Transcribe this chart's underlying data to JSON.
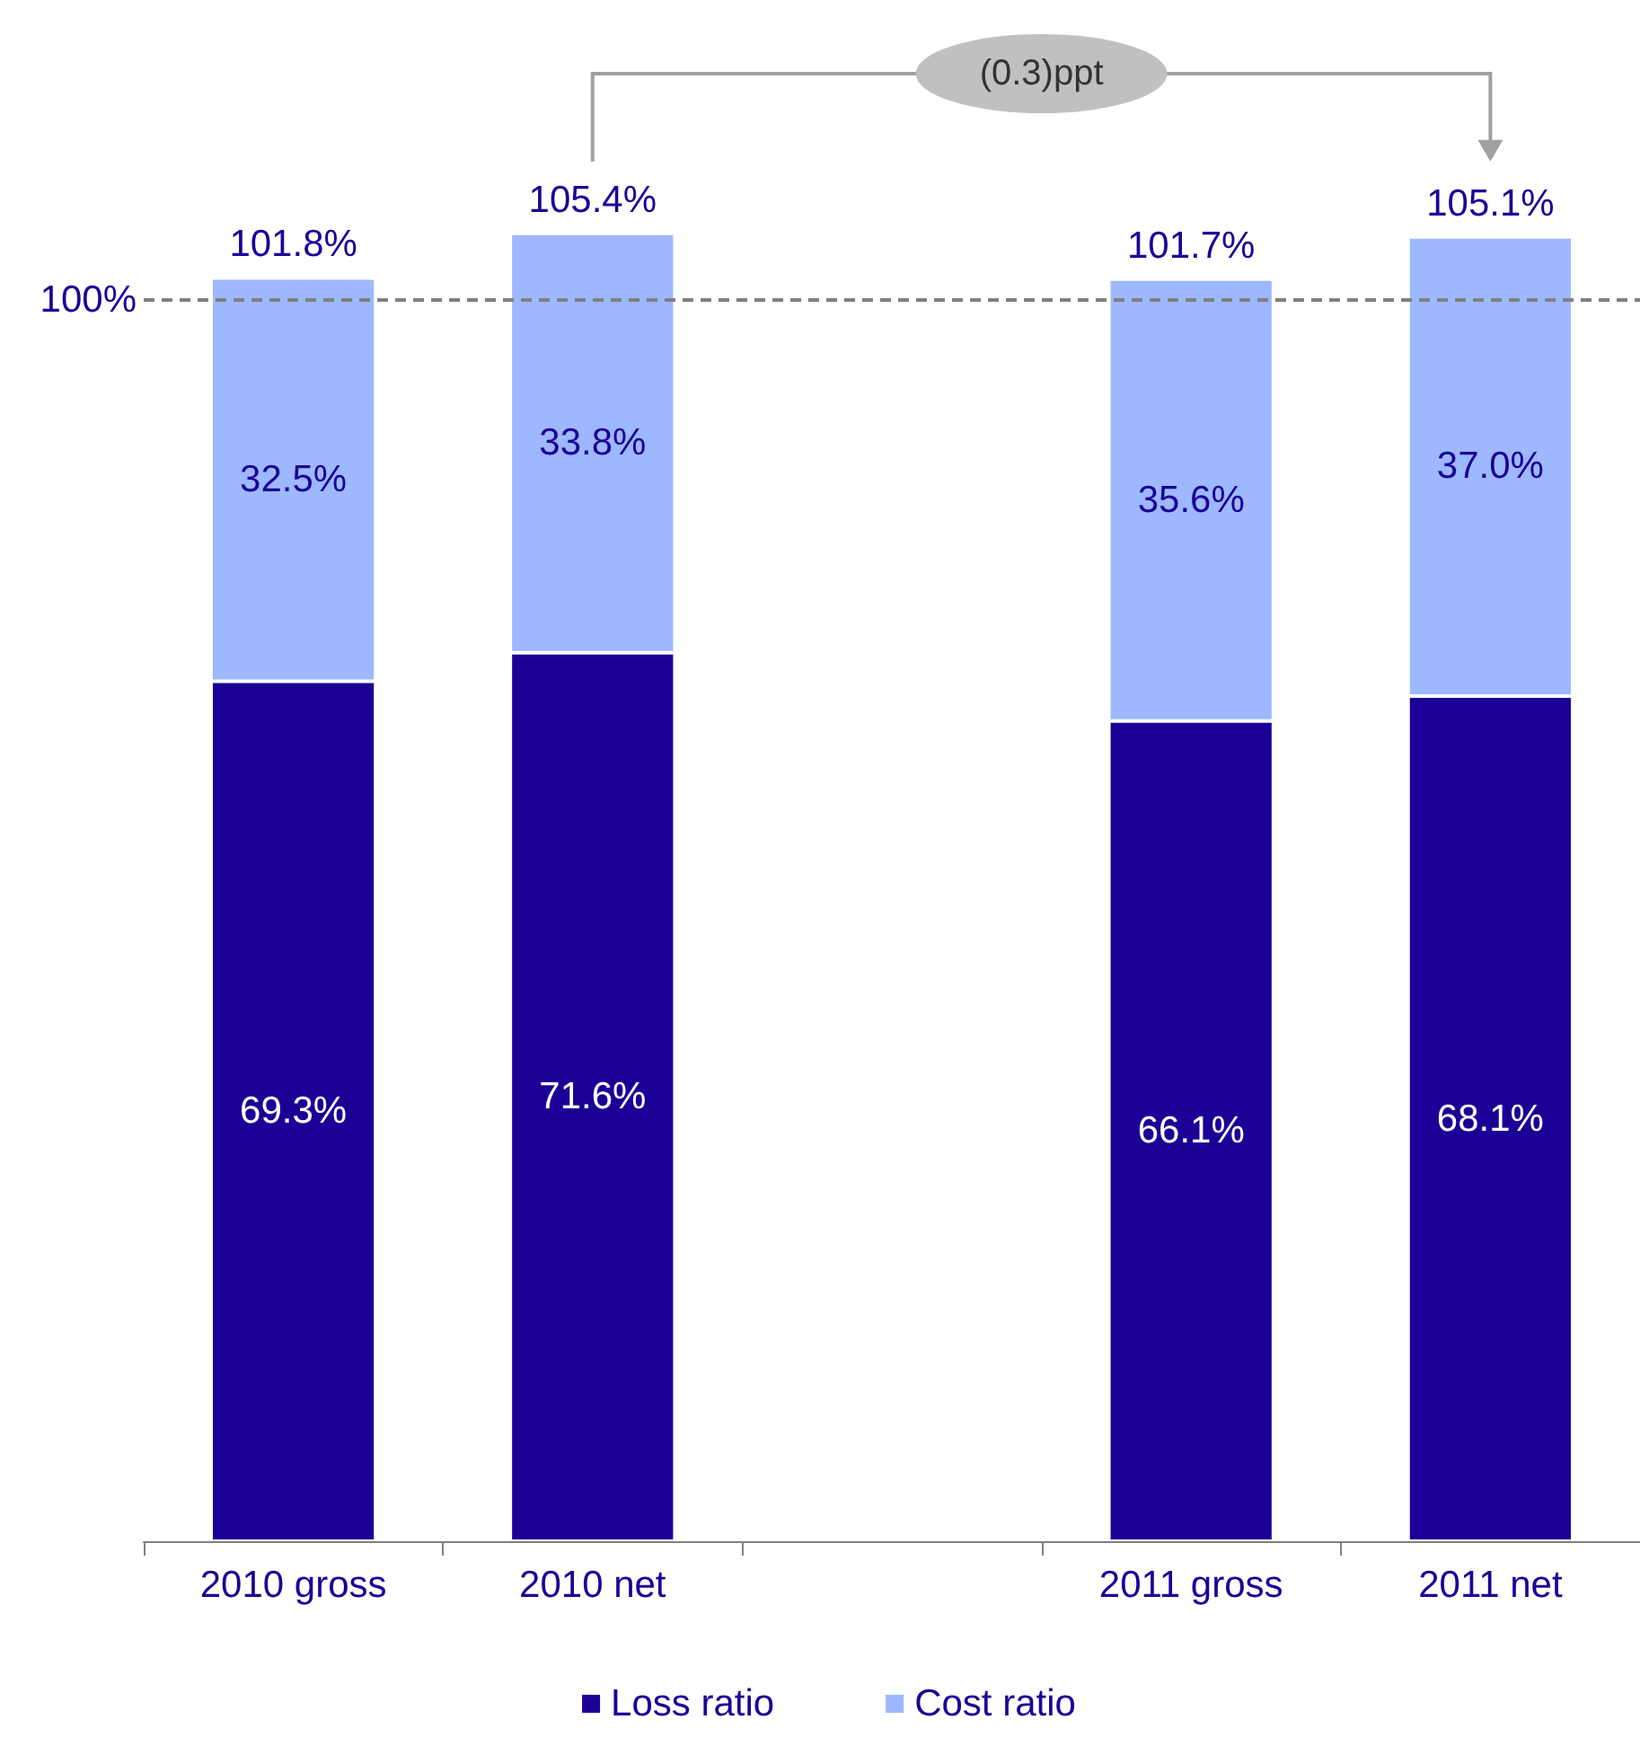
{
  "chart_data": {
    "type": "bar",
    "stacked": true,
    "categories": [
      "2010 gross",
      "2010 net",
      null,
      "2011 gross",
      "2011 net"
    ],
    "series": [
      {
        "name": "Loss ratio",
        "color": "#1c0096",
        "values": [
          69.3,
          71.6,
          null,
          66.1,
          68.1
        ],
        "value_labels": [
          "69.3%",
          "71.6%",
          null,
          "66.1%",
          "68.1%"
        ]
      },
      {
        "name": "Cost ratio",
        "color": "#9db8ff",
        "values": [
          32.5,
          33.8,
          null,
          35.6,
          37.0
        ],
        "value_labels": [
          "32.5%",
          "33.8%",
          null,
          "35.6%",
          "37.0%"
        ]
      }
    ],
    "totals": [
      "101.8%",
      "105.4%",
      null,
      "101.7%",
      "105.1%"
    ],
    "tick_labels": "x",
    "legend": "bottom",
    "ref_lines": [
      {
        "axis": "y",
        "value": 100,
        "label": "100%",
        "color": "#808080",
        "line_style": "dashed"
      }
    ],
    "annotations": [
      "(0.3)ppt"
    ]
  }
}
